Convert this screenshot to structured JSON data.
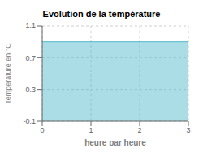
{
  "chart_data": {
    "type": "area",
    "title": "Evolution de la température",
    "xlabel": "heure par heure",
    "ylabel": "Température en °C",
    "x": [
      0,
      3
    ],
    "values": [
      0.9,
      0.9
    ],
    "color": "#55bbcc",
    "xlim": [
      0,
      3
    ],
    "ylim": [
      -0.1,
      1.1
    ],
    "xticks": [
      0,
      1,
      2,
      3
    ],
    "yticks": [
      -0.1,
      0.3,
      0.7,
      1.1
    ],
    "grid": true
  }
}
